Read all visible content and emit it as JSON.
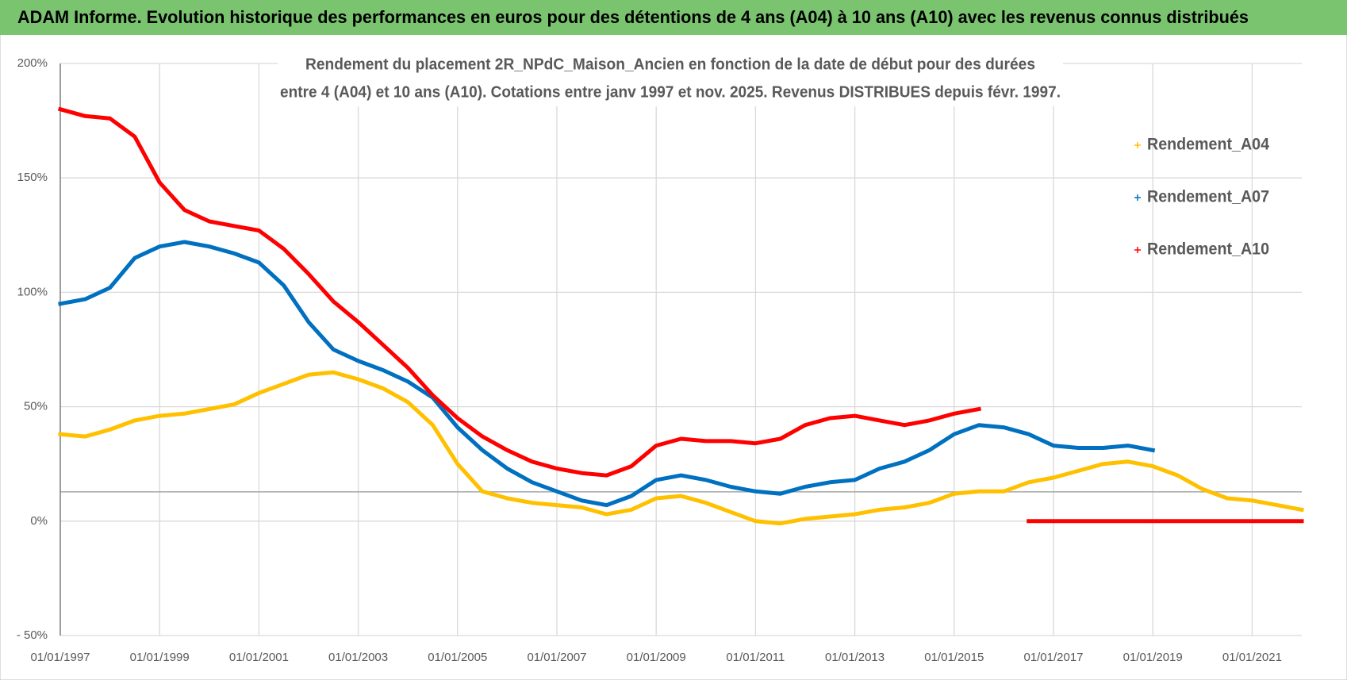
{
  "header": {
    "title": "ADAM Informe. Evolution historique des performances en euros pour des détentions de 4 ans (A04) à 10 ans (A10) avec les revenus connus distribués"
  },
  "chart_data": {
    "type": "line",
    "title": [
      "Rendement du placement 2R_NPdC_Maison_Ancien en fonction de la date de début pour des durées",
      "entre 4 (A04) et 10 ans (A10).  Cotations entre janv 1997 et  nov. 2025. Revenus DISTRIBUES depuis févr. 1997."
    ],
    "x": [
      "01/01/1997",
      "01/07/1997",
      "01/01/1998",
      "01/07/1998",
      "01/01/1999",
      "01/07/1999",
      "01/01/2000",
      "01/07/2000",
      "01/01/2001",
      "01/07/2001",
      "01/01/2002",
      "01/07/2002",
      "01/01/2003",
      "01/07/2003",
      "01/01/2004",
      "01/07/2004",
      "01/01/2005",
      "01/07/2005",
      "01/01/2006",
      "01/07/2006",
      "01/01/2007",
      "01/07/2007",
      "01/01/2008",
      "01/07/2008",
      "01/01/2009",
      "01/07/2009",
      "01/01/2010",
      "01/07/2010",
      "01/01/2011",
      "01/07/2011",
      "01/01/2012",
      "01/07/2012",
      "01/01/2013",
      "01/07/2013",
      "01/01/2014",
      "01/07/2014",
      "01/01/2015",
      "01/07/2015",
      "01/01/2016",
      "01/07/2016",
      "01/01/2017",
      "01/07/2017",
      "01/01/2018",
      "01/07/2018",
      "01/01/2019",
      "01/07/2019",
      "01/01/2020",
      "01/07/2020",
      "01/01/2021",
      "01/07/2021",
      "01/01/2022"
    ],
    "series": [
      {
        "name": "Rendement_A04",
        "color": "#ffc000",
        "values": [
          38,
          37,
          40,
          44,
          46,
          47,
          49,
          51,
          56,
          60,
          64,
          65,
          62,
          58,
          52,
          42,
          25,
          13,
          10,
          8,
          7,
          6,
          3,
          5,
          10,
          11,
          8,
          4,
          0,
          -1,
          1,
          2,
          3,
          5,
          6,
          8,
          12,
          13,
          13,
          17,
          19,
          22,
          25,
          26,
          24,
          20,
          14,
          10,
          9,
          7,
          5
        ]
      },
      {
        "name": "Rendement_A07",
        "color": "#0070c0",
        "values": [
          95,
          97,
          102,
          115,
          120,
          122,
          120,
          117,
          113,
          103,
          87,
          75,
          70,
          66,
          61,
          54,
          41,
          31,
          23,
          17,
          13,
          9,
          7,
          11,
          18,
          20,
          18,
          15,
          13,
          12,
          15,
          17,
          18,
          23,
          26,
          31,
          38,
          42,
          41,
          38,
          33,
          32,
          32,
          33,
          31,
          null,
          null,
          null,
          null,
          null,
          null
        ]
      },
      {
        "name": "Rendement_A10",
        "color": "#ff0000",
        "values": [
          180,
          177,
          176,
          168,
          148,
          136,
          131,
          129,
          127,
          119,
          108,
          96,
          87,
          77,
          67,
          55,
          45,
          37,
          31,
          26,
          23,
          21,
          20,
          24,
          33,
          36,
          35,
          35,
          34,
          36,
          42,
          45,
          46,
          44,
          42,
          44,
          47,
          49,
          null,
          0,
          0,
          0,
          0,
          0,
          0,
          0,
          0,
          0,
          0,
          0,
          0
        ]
      }
    ],
    "xlim": [
      "01/01/1997",
      "01/01/2022"
    ],
    "xticks": [
      "01/01/1997",
      "01/01/1999",
      "01/01/2001",
      "01/01/2003",
      "01/01/2005",
      "01/01/2007",
      "01/01/2009",
      "01/01/2011",
      "01/01/2013",
      "01/01/2015",
      "01/01/2017",
      "01/01/2019",
      "01/01/2021"
    ],
    "ylim": [
      -50,
      200
    ],
    "yticks": [
      {
        "value": -50,
        "label": "- 50%"
      },
      {
        "value": 0,
        "label": "0%"
      },
      {
        "value": 50,
        "label": "50%"
      },
      {
        "value": 100,
        "label": "100%"
      },
      {
        "value": 150,
        "label": "150%"
      },
      {
        "value": 200,
        "label": "200%"
      }
    ],
    "reference_line": 12.8,
    "grid": true,
    "legend": "right"
  }
}
